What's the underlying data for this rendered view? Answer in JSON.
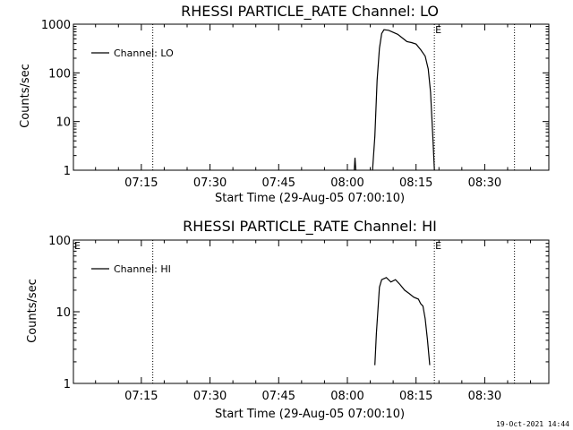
{
  "chart_data": [
    {
      "type": "line",
      "title": "RHESSI PARTICLE_RATE Channel: LO",
      "xlabel": "Start Time (29-Aug-05 07:00:10)",
      "ylabel": "Counts/sec",
      "y_scale": "log",
      "ylim": [
        1,
        1000
      ],
      "y_ticks": [
        {
          "value": 1,
          "label": "1"
        },
        {
          "value": 10,
          "label": "10"
        },
        {
          "value": 100,
          "label": "100"
        },
        {
          "value": 1000,
          "label": "1000"
        }
      ],
      "xlim": [
        "07:00:10",
        "08:44:00"
      ],
      "x_ticks": [
        {
          "value": "07:15",
          "label": "07:15"
        },
        {
          "value": "07:30",
          "label": "07:30"
        },
        {
          "value": "07:45",
          "label": "07:45"
        },
        {
          "value": "08:00",
          "label": "08:00"
        },
        {
          "value": "08:15",
          "label": "08:15"
        },
        {
          "value": "08:30",
          "label": "08:30"
        }
      ],
      "markers": [
        {
          "x": "07:17:30",
          "label": ""
        },
        {
          "x": "08:19:00",
          "label": "E"
        },
        {
          "x": "08:36:30",
          "label": ""
        }
      ],
      "legend": {
        "placement": "top-left",
        "entries": [
          "Channel: LO"
        ]
      },
      "series": [
        {
          "name": "Channel: LO",
          "segments": [
            [
              [
                "08:01:30",
                1
              ],
              [
                "08:01:40",
                1.8
              ],
              [
                "08:01:50",
                1
              ]
            ],
            [
              [
                "08:05:30",
                1
              ],
              [
                "08:06:00",
                5
              ],
              [
                "08:06:30",
                70
              ],
              [
                "08:07:00",
                320
              ],
              [
                "08:07:30",
                640
              ],
              [
                "08:08:00",
                770
              ],
              [
                "08:09:00",
                750
              ],
              [
                "08:10:00",
                680
              ],
              [
                "08:11:00",
                620
              ],
              [
                "08:12:00",
                520
              ],
              [
                "08:13:00",
                440
              ],
              [
                "08:14:00",
                420
              ],
              [
                "08:15:00",
                390
              ],
              [
                "08:16:00",
                300
              ],
              [
                "08:17:00",
                220
              ],
              [
                "08:17:40",
                120
              ],
              [
                "08:18:10",
                40
              ],
              [
                "08:18:40",
                5
              ],
              [
                "08:19:00",
                1
              ]
            ]
          ]
        }
      ]
    },
    {
      "type": "line",
      "title": "RHESSI PARTICLE_RATE Channel: HI",
      "xlabel": "Start Time (29-Aug-05 07:00:10)",
      "ylabel": "Counts/sec",
      "y_scale": "log",
      "ylim": [
        1,
        100
      ],
      "y_ticks": [
        {
          "value": 1,
          "label": "1"
        },
        {
          "value": 10,
          "label": "10"
        },
        {
          "value": 100,
          "label": "100"
        }
      ],
      "xlim": [
        "07:00:10",
        "08:44:00"
      ],
      "x_ticks": [
        {
          "value": "07:15",
          "label": "07:15"
        },
        {
          "value": "07:30",
          "label": "07:30"
        },
        {
          "value": "07:45",
          "label": "07:45"
        },
        {
          "value": "08:00",
          "label": "08:00"
        },
        {
          "value": "08:15",
          "label": "08:15"
        },
        {
          "value": "08:30",
          "label": "08:30"
        }
      ],
      "markers": [
        {
          "x": "07:17:30",
          "label": ""
        },
        {
          "x": "08:19:00",
          "label": "E"
        },
        {
          "x": "08:36:30",
          "label": ""
        }
      ],
      "corner_label": "E",
      "legend": {
        "placement": "top-left",
        "entries": [
          "Channel: HI"
        ]
      },
      "series": [
        {
          "name": "Channel: HI",
          "segments": [
            [
              [
                "08:06:00",
                1.8
              ],
              [
                "08:06:20",
                5
              ],
              [
                "08:07:00",
                22
              ],
              [
                "08:07:30",
                28
              ],
              [
                "08:08:30",
                30
              ],
              [
                "08:09:30",
                26
              ],
              [
                "08:10:30",
                28
              ],
              [
                "08:11:30",
                24
              ],
              [
                "08:12:30",
                20
              ],
              [
                "08:13:30",
                18
              ],
              [
                "08:14:30",
                16
              ],
              [
                "08:15:30",
                15
              ],
              [
                "08:16:00",
                13
              ],
              [
                "08:16:30",
                12
              ],
              [
                "08:17:00",
                8
              ],
              [
                "08:17:30",
                4
              ],
              [
                "08:18:00",
                1.8
              ]
            ]
          ]
        }
      ]
    }
  ],
  "footer": "19-Oct-2021 14:44"
}
